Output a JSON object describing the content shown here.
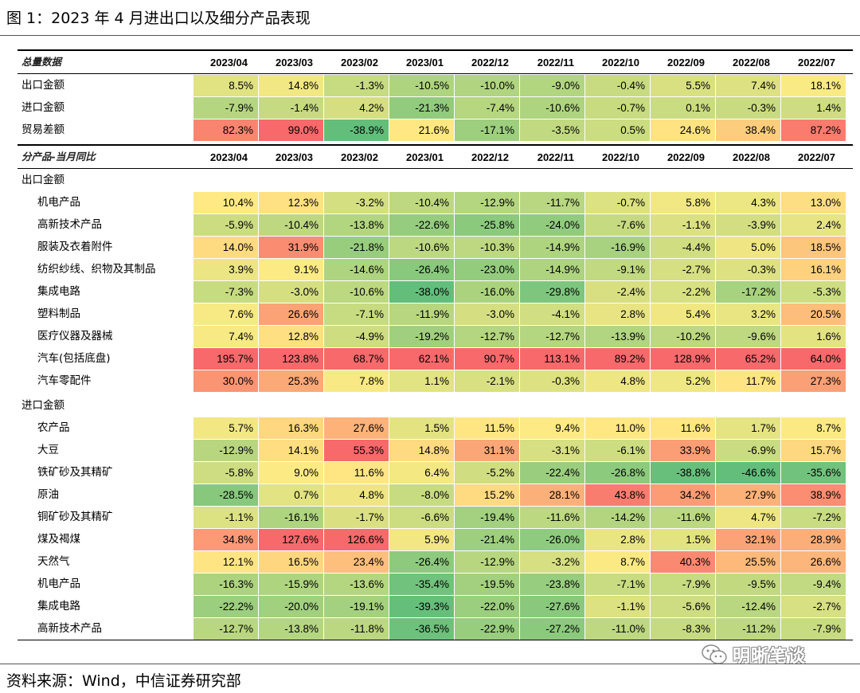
{
  "figure_title": "图 1：2023 年 4 月进出口以及细分产品表现",
  "source": "资料来源：Wind，中信证券研究部",
  "watermark": "明晰笔谈",
  "colors": {
    "min": "#63BE7B",
    "mid": "#FFEB84",
    "max": "#F8696B"
  },
  "periods": [
    "2023/04",
    "2023/03",
    "2023/02",
    "2023/01",
    "2022/12",
    "2022/11",
    "2022/10",
    "2022/09",
    "2022/08",
    "2022/07"
  ],
  "sections": [
    {
      "header": "总量数据",
      "scale": [
        -38.9,
        20,
        99.0
      ],
      "groups": [
        {
          "title": "",
          "rows": [
            {
              "label": "出口金额",
              "values": [
                "8.5%",
                "14.8%",
                "-1.3%",
                "-10.5%",
                "-10.0%",
                "-9.0%",
                "-0.4%",
                "5.5%",
                "7.4%",
                "18.1%"
              ]
            },
            {
              "label": "进口金额",
              "values": [
                "-7.9%",
                "-1.4%",
                "4.2%",
                "-21.3%",
                "-7.4%",
                "-10.6%",
                "-0.7%",
                "0.1%",
                "-0.3%",
                "1.4%"
              ]
            },
            {
              "label": "贸易差额",
              "values": [
                "82.3%",
                "99.0%",
                "-38.9%",
                "21.6%",
                "-17.1%",
                "-3.5%",
                "0.5%",
                "24.6%",
                "38.4%",
                "87.2%"
              ]
            }
          ]
        }
      ]
    },
    {
      "header": "分产品-当月同比",
      "groups": [
        {
          "title": "出口金额",
          "scale": [
            -38.0,
            10,
            40.0
          ],
          "rows": [
            {
              "label": "机电产品",
              "values": [
                "10.4%",
                "12.3%",
                "-3.2%",
                "-10.4%",
                "-12.9%",
                "-11.7%",
                "-0.7%",
                "5.8%",
                "4.3%",
                "13.0%"
              ]
            },
            {
              "label": "高新技术产品",
              "values": [
                "-5.9%",
                "-10.4%",
                "-13.8%",
                "-22.6%",
                "-25.8%",
                "-24.0%",
                "-7.6%",
                "-1.1%",
                "-3.9%",
                "2.4%"
              ]
            },
            {
              "label": "服装及衣着附件",
              "values": [
                "14.0%",
                "31.9%",
                "-21.8%",
                "-10.6%",
                "-10.3%",
                "-14.9%",
                "-16.9%",
                "-4.4%",
                "5.0%",
                "18.5%"
              ]
            },
            {
              "label": "纺织纱线、织物及其制品",
              "values": [
                "3.9%",
                "9.1%",
                "-14.6%",
                "-26.4%",
                "-23.0%",
                "-14.9%",
                "-9.1%",
                "-2.7%",
                "-0.3%",
                "16.1%"
              ]
            },
            {
              "label": "集成电路",
              "values": [
                "-7.3%",
                "-3.0%",
                "-10.6%",
                "-38.0%",
                "-16.0%",
                "-29.8%",
                "-2.4%",
                "-2.2%",
                "-17.2%",
                "-5.3%"
              ]
            },
            {
              "label": "塑料制品",
              "values": [
                "7.6%",
                "26.6%",
                "-7.1%",
                "-11.9%",
                "-3.0%",
                "-4.1%",
                "2.8%",
                "5.4%",
                "3.2%",
                "20.5%"
              ]
            },
            {
              "label": "医疗仪器及器械",
              "values": [
                "7.4%",
                "12.8%",
                "-4.9%",
                "-19.2%",
                "-12.7%",
                "-12.7%",
                "-13.9%",
                "-10.2%",
                "-9.6%",
                "1.6%"
              ]
            },
            {
              "label": "汽车(包括底盘)",
              "values": [
                "195.7%",
                "123.8%",
                "68.7%",
                "62.1%",
                "90.7%",
                "113.1%",
                "89.2%",
                "128.9%",
                "65.2%",
                "64.0%"
              ]
            },
            {
              "label": "汽车零配件",
              "values": [
                "30.0%",
                "25.3%",
                "7.8%",
                "1.1%",
                "-2.1%",
                "-0.3%",
                "4.8%",
                "5.2%",
                "11.7%",
                "27.3%"
              ]
            }
          ]
        },
        {
          "title": "进口金额",
          "scale": [
            -40.0,
            10,
            50.0
          ],
          "rows": [
            {
              "label": "农产品",
              "values": [
                "5.7%",
                "16.3%",
                "27.6%",
                "1.5%",
                "11.5%",
                "9.4%",
                "11.0%",
                "11.6%",
                "1.7%",
                "8.7%"
              ]
            },
            {
              "label": "大豆",
              "values": [
                "-12.9%",
                "14.1%",
                "55.3%",
                "14.8%",
                "31.1%",
                "-3.1%",
                "-6.1%",
                "33.9%",
                "-6.9%",
                "15.7%"
              ]
            },
            {
              "label": "铁矿砂及其精矿",
              "values": [
                "-5.8%",
                "9.0%",
                "11.6%",
                "6.4%",
                "-5.2%",
                "-22.4%",
                "-26.8%",
                "-38.8%",
                "-46.6%",
                "-35.6%"
              ]
            },
            {
              "label": "原油",
              "values": [
                "-28.5%",
                "0.7%",
                "4.8%",
                "-8.0%",
                "15.2%",
                "28.1%",
                "43.8%",
                "34.2%",
                "27.9%",
                "38.9%"
              ]
            },
            {
              "label": "铜矿砂及其精矿",
              "values": [
                "-1.1%",
                "-16.1%",
                "-1.7%",
                "-6.6%",
                "-19.4%",
                "-11.6%",
                "-14.2%",
                "-11.6%",
                "4.7%",
                "-7.2%"
              ]
            },
            {
              "label": "煤及褐煤",
              "values": [
                "34.8%",
                "127.6%",
                "126.6%",
                "5.9%",
                "-21.4%",
                "-26.0%",
                "2.8%",
                "1.5%",
                "32.1%",
                "28.9%"
              ]
            },
            {
              "label": "天然气",
              "values": [
                "12.1%",
                "16.5%",
                "23.4%",
                "-26.4%",
                "-12.9%",
                "-3.2%",
                "8.7%",
                "40.3%",
                "25.5%",
                "26.6%"
              ]
            },
            {
              "label": "机电产品",
              "values": [
                "-16.3%",
                "-15.9%",
                "-13.6%",
                "-35.4%",
                "-19.5%",
                "-23.8%",
                "-7.1%",
                "-7.9%",
                "-9.5%",
                "-9.4%"
              ]
            },
            {
              "label": "集成电路",
              "values": [
                "-22.2%",
                "-20.0%",
                "-19.1%",
                "-39.3%",
                "-22.0%",
                "-27.6%",
                "-1.1%",
                "-5.6%",
                "-12.4%",
                "-2.7%"
              ]
            },
            {
              "label": "高新技术产品",
              "values": [
                "-12.7%",
                "-13.8%",
                "-11.8%",
                "-36.5%",
                "-22.9%",
                "-27.2%",
                "-11.0%",
                "-8.3%",
                "-11.2%",
                "-7.9%"
              ]
            }
          ]
        }
      ]
    }
  ]
}
